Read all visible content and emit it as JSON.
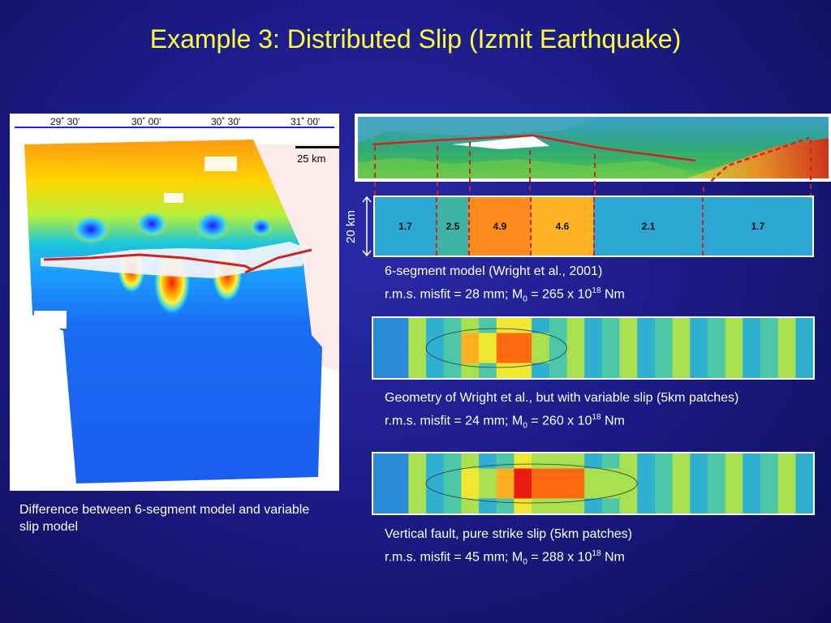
{
  "title": "Example 3: Distributed Slip (Izmit Earthquake)",
  "map": {
    "longitude_ticks": [
      "29˚ 30'",
      "30˚ 00'",
      "30˚ 30'",
      "31˚ 00'"
    ],
    "scale_label": "25 km",
    "caption": "Difference between 6-segment model and variable slip model"
  },
  "segment_model": {
    "depth_label": "20 km",
    "segments": [
      {
        "slip": "1.7",
        "color": "#2aa7d2"
      },
      {
        "slip": "2.5",
        "color": "#3fb3a6"
      },
      {
        "slip": "4.9",
        "color": "#ff8a1e"
      },
      {
        "slip": "4.6",
        "color": "#ffb222"
      },
      {
        "slip": "2.1",
        "color": "#2aa7d2"
      },
      {
        "slip": "1.7",
        "color": "#2aa7d2"
      }
    ],
    "caption_line1": "6-segment model (Wright et al., 2001)",
    "caption_line2": {
      "prefix": "r.m.s. misfit = 28 mm; M",
      "sub": "0",
      "mid": " = 265 x 10",
      "sup": "18",
      "suffix": " Nm"
    }
  },
  "variable_slip": {
    "caption_line1": "Geometry of Wright et al., but with variable slip (5km patches)",
    "caption_line2": {
      "prefix": "r.m.s. misfit = 24 mm; M",
      "sub": "0",
      "mid": " = 260 x 10",
      "sup": "18",
      "suffix": " Nm"
    }
  },
  "vertical_fault": {
    "caption_line1": "Vertical fault, pure strike slip (5km patches)",
    "caption_line2": {
      "prefix": "r.m.s. misfit = 45 mm; M",
      "sub": "0",
      "mid": " = 288 x 10",
      "sup": "18",
      "suffix": " Nm"
    }
  },
  "colors": {
    "title": "#ffff3a",
    "fault_trace": "#d42020",
    "background": "#1c1c8a"
  }
}
